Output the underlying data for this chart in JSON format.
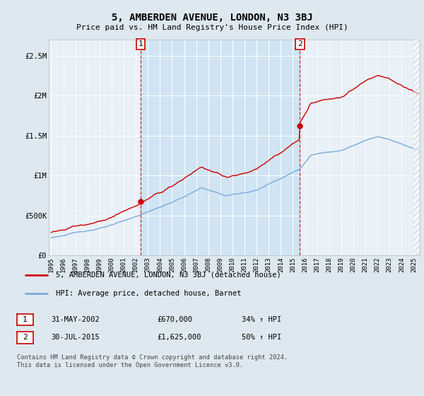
{
  "title": "5, AMBERDEN AVENUE, LONDON, N3 3BJ",
  "subtitle": "Price paid vs. HM Land Registry's House Price Index (HPI)",
  "ylim": [
    0,
    2700000
  ],
  "xlim_start": 1994.8,
  "xlim_end": 2025.5,
  "x_ticks": [
    1995,
    1996,
    1997,
    1998,
    1999,
    2000,
    2001,
    2002,
    2003,
    2004,
    2005,
    2006,
    2007,
    2008,
    2009,
    2010,
    2011,
    2012,
    2013,
    2014,
    2015,
    2016,
    2017,
    2018,
    2019,
    2020,
    2021,
    2022,
    2023,
    2024,
    2025
  ],
  "hpi_color": "#7aaadd",
  "sale_color": "#cc0000",
  "sale1_x": 2002.42,
  "sale1_y": 670000,
  "sale2_x": 2015.58,
  "sale2_y": 1625000,
  "legend_sale": "5, AMBERDEN AVENUE, LONDON, N3 3BJ (detached house)",
  "legend_hpi": "HPI: Average price, detached house, Barnet",
  "table_row1": [
    "1",
    "31-MAY-2002",
    "£670,000",
    "34% ↑ HPI"
  ],
  "table_row2": [
    "2",
    "30-JUL-2015",
    "£1,625,000",
    "50% ↑ HPI"
  ],
  "footer": "Contains HM Land Registry data © Crown copyright and database right 2024.\nThis data is licensed under the Open Government Licence v3.0.",
  "bg_color": "#dde8f0",
  "plot_bg_color": "#e8f0f8",
  "shade_color": "#d0e4f4",
  "grid_color": "#ffffff"
}
